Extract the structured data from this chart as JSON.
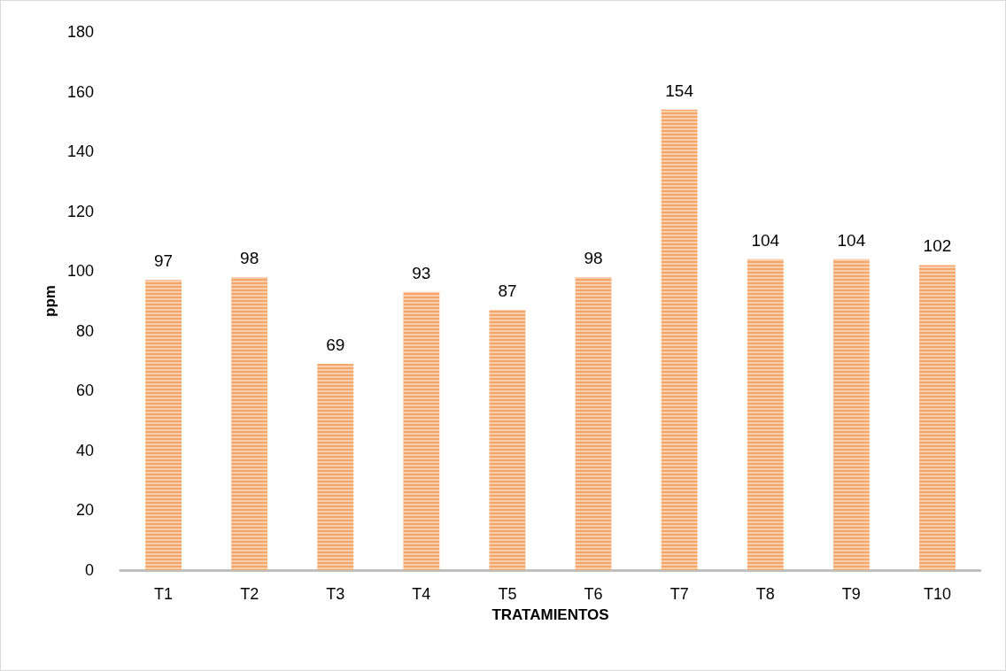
{
  "chart_data": {
    "type": "bar",
    "xlabel": "TRATAMIENTOS",
    "ylabel": "ppm",
    "categories": [
      "T1",
      "T2",
      "T3",
      "T4",
      "T5",
      "T6",
      "T7",
      "T8",
      "T9",
      "T10"
    ],
    "values": [
      97,
      98,
      69,
      93,
      87,
      98,
      154,
      104,
      104,
      102
    ],
    "color": "#f4a66a",
    "ylim": [
      0,
      180
    ],
    "yticks": [
      0,
      20,
      40,
      60,
      80,
      100,
      120,
      140,
      160,
      180
    ],
    "grid": false,
    "data_labels": true
  }
}
